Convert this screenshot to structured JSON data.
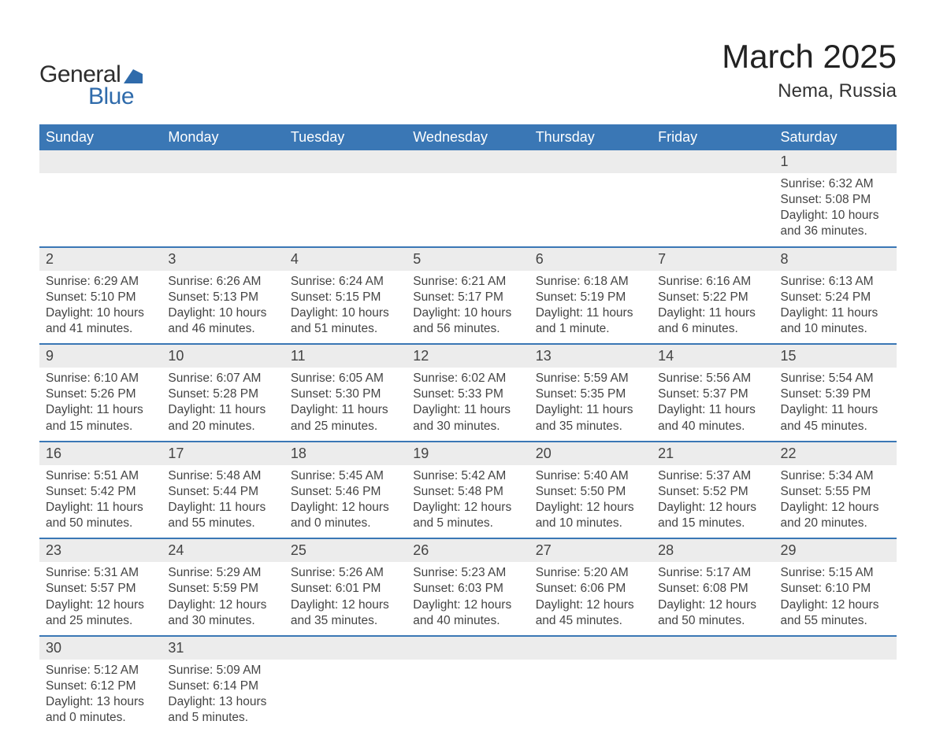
{
  "logo": {
    "text1": "General",
    "text2": "Blue"
  },
  "title": "March 2025",
  "location": "Nema, Russia",
  "colors": {
    "header_bg": "#3a77b5",
    "header_text": "#ffffff",
    "daynum_bg": "#ececec",
    "row_border": "#3a77b5",
    "logo_blue": "#2f6bab",
    "body_text": "#333333"
  },
  "weekdays": [
    "Sunday",
    "Monday",
    "Tuesday",
    "Wednesday",
    "Thursday",
    "Friday",
    "Saturday"
  ],
  "weeks": [
    [
      null,
      null,
      null,
      null,
      null,
      null,
      {
        "n": "1",
        "sr": "Sunrise: 6:32 AM",
        "ss": "Sunset: 5:08 PM",
        "dl": "Daylight: 10 hours and 36 minutes."
      }
    ],
    [
      {
        "n": "2",
        "sr": "Sunrise: 6:29 AM",
        "ss": "Sunset: 5:10 PM",
        "dl": "Daylight: 10 hours and 41 minutes."
      },
      {
        "n": "3",
        "sr": "Sunrise: 6:26 AM",
        "ss": "Sunset: 5:13 PM",
        "dl": "Daylight: 10 hours and 46 minutes."
      },
      {
        "n": "4",
        "sr": "Sunrise: 6:24 AM",
        "ss": "Sunset: 5:15 PM",
        "dl": "Daylight: 10 hours and 51 minutes."
      },
      {
        "n": "5",
        "sr": "Sunrise: 6:21 AM",
        "ss": "Sunset: 5:17 PM",
        "dl": "Daylight: 10 hours and 56 minutes."
      },
      {
        "n": "6",
        "sr": "Sunrise: 6:18 AM",
        "ss": "Sunset: 5:19 PM",
        "dl": "Daylight: 11 hours and 1 minute."
      },
      {
        "n": "7",
        "sr": "Sunrise: 6:16 AM",
        "ss": "Sunset: 5:22 PM",
        "dl": "Daylight: 11 hours and 6 minutes."
      },
      {
        "n": "8",
        "sr": "Sunrise: 6:13 AM",
        "ss": "Sunset: 5:24 PM",
        "dl": "Daylight: 11 hours and 10 minutes."
      }
    ],
    [
      {
        "n": "9",
        "sr": "Sunrise: 6:10 AM",
        "ss": "Sunset: 5:26 PM",
        "dl": "Daylight: 11 hours and 15 minutes."
      },
      {
        "n": "10",
        "sr": "Sunrise: 6:07 AM",
        "ss": "Sunset: 5:28 PM",
        "dl": "Daylight: 11 hours and 20 minutes."
      },
      {
        "n": "11",
        "sr": "Sunrise: 6:05 AM",
        "ss": "Sunset: 5:30 PM",
        "dl": "Daylight: 11 hours and 25 minutes."
      },
      {
        "n": "12",
        "sr": "Sunrise: 6:02 AM",
        "ss": "Sunset: 5:33 PM",
        "dl": "Daylight: 11 hours and 30 minutes."
      },
      {
        "n": "13",
        "sr": "Sunrise: 5:59 AM",
        "ss": "Sunset: 5:35 PM",
        "dl": "Daylight: 11 hours and 35 minutes."
      },
      {
        "n": "14",
        "sr": "Sunrise: 5:56 AM",
        "ss": "Sunset: 5:37 PM",
        "dl": "Daylight: 11 hours and 40 minutes."
      },
      {
        "n": "15",
        "sr": "Sunrise: 5:54 AM",
        "ss": "Sunset: 5:39 PM",
        "dl": "Daylight: 11 hours and 45 minutes."
      }
    ],
    [
      {
        "n": "16",
        "sr": "Sunrise: 5:51 AM",
        "ss": "Sunset: 5:42 PM",
        "dl": "Daylight: 11 hours and 50 minutes."
      },
      {
        "n": "17",
        "sr": "Sunrise: 5:48 AM",
        "ss": "Sunset: 5:44 PM",
        "dl": "Daylight: 11 hours and 55 minutes."
      },
      {
        "n": "18",
        "sr": "Sunrise: 5:45 AM",
        "ss": "Sunset: 5:46 PM",
        "dl": "Daylight: 12 hours and 0 minutes."
      },
      {
        "n": "19",
        "sr": "Sunrise: 5:42 AM",
        "ss": "Sunset: 5:48 PM",
        "dl": "Daylight: 12 hours and 5 minutes."
      },
      {
        "n": "20",
        "sr": "Sunrise: 5:40 AM",
        "ss": "Sunset: 5:50 PM",
        "dl": "Daylight: 12 hours and 10 minutes."
      },
      {
        "n": "21",
        "sr": "Sunrise: 5:37 AM",
        "ss": "Sunset: 5:52 PM",
        "dl": "Daylight: 12 hours and 15 minutes."
      },
      {
        "n": "22",
        "sr": "Sunrise: 5:34 AM",
        "ss": "Sunset: 5:55 PM",
        "dl": "Daylight: 12 hours and 20 minutes."
      }
    ],
    [
      {
        "n": "23",
        "sr": "Sunrise: 5:31 AM",
        "ss": "Sunset: 5:57 PM",
        "dl": "Daylight: 12 hours and 25 minutes."
      },
      {
        "n": "24",
        "sr": "Sunrise: 5:29 AM",
        "ss": "Sunset: 5:59 PM",
        "dl": "Daylight: 12 hours and 30 minutes."
      },
      {
        "n": "25",
        "sr": "Sunrise: 5:26 AM",
        "ss": "Sunset: 6:01 PM",
        "dl": "Daylight: 12 hours and 35 minutes."
      },
      {
        "n": "26",
        "sr": "Sunrise: 5:23 AM",
        "ss": "Sunset: 6:03 PM",
        "dl": "Daylight: 12 hours and 40 minutes."
      },
      {
        "n": "27",
        "sr": "Sunrise: 5:20 AM",
        "ss": "Sunset: 6:06 PM",
        "dl": "Daylight: 12 hours and 45 minutes."
      },
      {
        "n": "28",
        "sr": "Sunrise: 5:17 AM",
        "ss": "Sunset: 6:08 PM",
        "dl": "Daylight: 12 hours and 50 minutes."
      },
      {
        "n": "29",
        "sr": "Sunrise: 5:15 AM",
        "ss": "Sunset: 6:10 PM",
        "dl": "Daylight: 12 hours and 55 minutes."
      }
    ],
    [
      {
        "n": "30",
        "sr": "Sunrise: 5:12 AM",
        "ss": "Sunset: 6:12 PM",
        "dl": "Daylight: 13 hours and 0 minutes."
      },
      {
        "n": "31",
        "sr": "Sunrise: 5:09 AM",
        "ss": "Sunset: 6:14 PM",
        "dl": "Daylight: 13 hours and 5 minutes."
      },
      null,
      null,
      null,
      null,
      null
    ]
  ]
}
